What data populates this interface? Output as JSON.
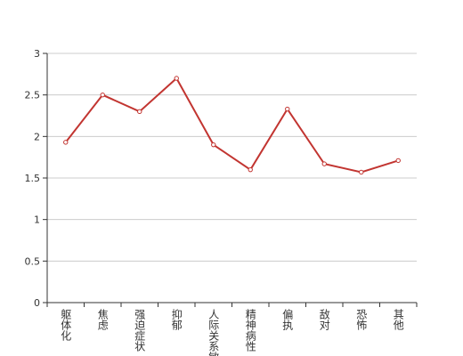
{
  "chart_data": {
    "type": "line",
    "categories": [
      "躯体化",
      "焦虑",
      "强迫症状",
      "抑郁",
      "人际关系敏感",
      "精神病性",
      "偏执",
      "敌对",
      "恐怖",
      "其他"
    ],
    "values": [
      1.93,
      2.5,
      2.3,
      2.7,
      1.9,
      1.6,
      2.33,
      1.67,
      1.57,
      1.71
    ],
    "color": "#c23531",
    "ylim": [
      0,
      3
    ],
    "yticks": [
      0,
      0.5,
      1,
      1.5,
      2,
      2.5,
      3
    ],
    "grid": true
  }
}
